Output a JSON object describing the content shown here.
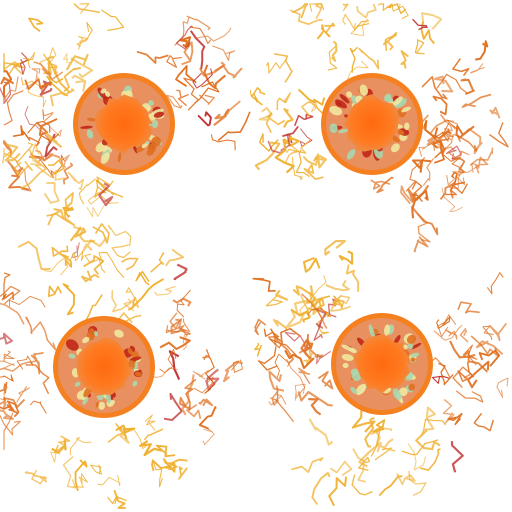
{
  "image": {
    "description_free": true,
    "motifs": [
      {
        "name": "motif-top-left",
        "wisps": [
          "top-left",
          "left",
          "bottom-left",
          "right-top"
        ]
      },
      {
        "name": "motif-top-right",
        "wisps": [
          "top",
          "right",
          "left",
          "bottom-right"
        ]
      },
      {
        "name": "motif-bottom-left",
        "wisps": [
          "top",
          "right",
          "bottom",
          "left"
        ]
      },
      {
        "name": "motif-bottom-right",
        "wisps": [
          "bottom",
          "right",
          "top-left",
          "left"
        ]
      }
    ],
    "colors": {
      "orb_core": "#ff6a10",
      "orb_ring": "#f58020",
      "orb_inner_ring": "#e99060",
      "mosaic_a": "#a8d8b0",
      "mosaic_b": "#f0e8a0",
      "mosaic_c": "#c02818",
      "web_gold": "#f0b030",
      "web_orange": "#e07020",
      "web_red": "#c03030"
    }
  }
}
